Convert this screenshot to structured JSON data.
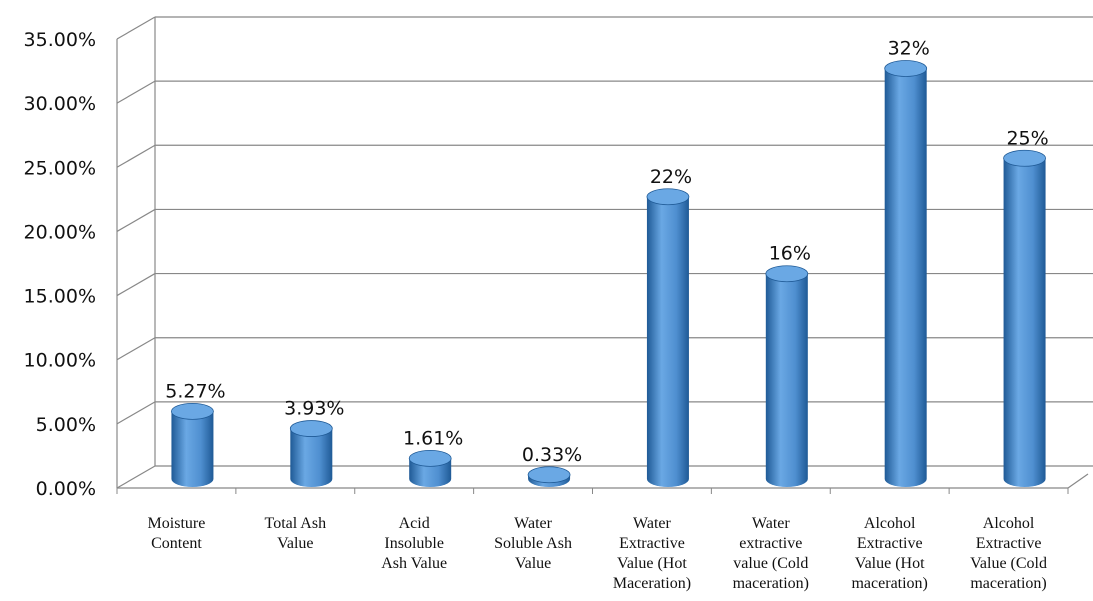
{
  "chart_data": {
    "type": "bar",
    "title": "",
    "xlabel": "",
    "ylabel": "",
    "ylim": [
      0,
      35
    ],
    "y_tick_labels": [
      "0.00%",
      "5.00%",
      "10.00%",
      "15.00%",
      "20.00%",
      "25.00%",
      "30.00%",
      "35.00%"
    ],
    "grid": true,
    "legend": "none",
    "bar_style": "3d-cylinder",
    "colors": {
      "bar": "#4f8fd0",
      "bar_dark": "#1f5a96",
      "bar_top": "#6aa8e4",
      "grid": "#888888"
    },
    "categories": [
      [
        "Moisture",
        "Content"
      ],
      [
        "Total Ash",
        "Value"
      ],
      [
        "Acid",
        "Insoluble",
        "Ash Value"
      ],
      [
        "Water",
        "Soluble Ash",
        "Value"
      ],
      [
        "Water",
        "Extractive",
        "Value (Hot",
        "Maceration)"
      ],
      [
        "Water",
        "extractive",
        "value (Cold",
        "maceration)"
      ],
      [
        "Alcohol",
        "Extractive",
        "Value (Hot",
        "maceration)"
      ],
      [
        "Alcohol",
        "Extractive",
        "Value (Cold",
        "maceration)"
      ]
    ],
    "values": [
      5.27,
      3.93,
      1.61,
      0.33,
      22,
      16,
      32,
      25
    ],
    "data_labels": [
      "5.27%",
      "3.93%",
      "1.61%",
      "0.33%",
      "22%",
      "16%",
      "32%",
      "25%"
    ]
  }
}
